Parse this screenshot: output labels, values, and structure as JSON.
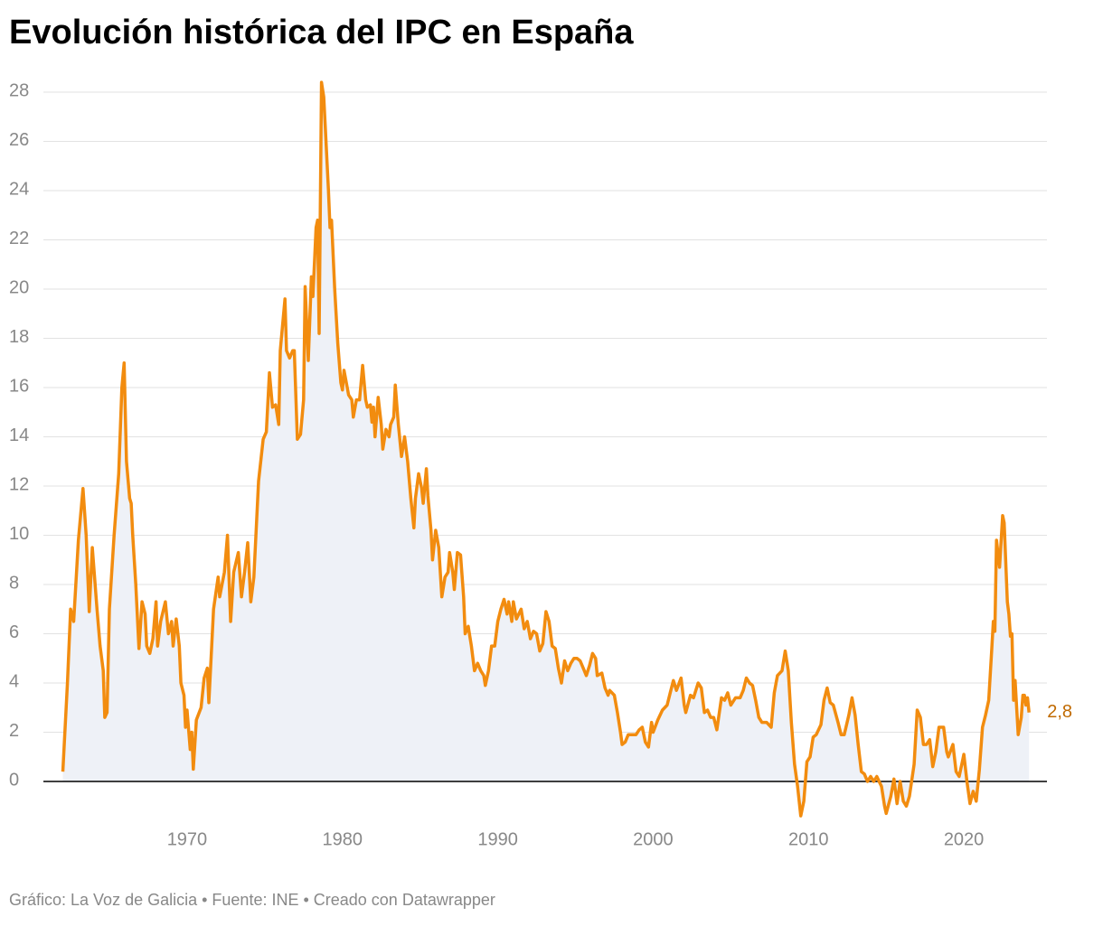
{
  "chart_data": {
    "type": "line",
    "title": "Evolución histórica del IPC en España",
    "source": "Gráfico: La Voz de Galicia • Fuente: INE • Creado con Datawrapper",
    "xlim": [
      1960.75,
      2025.35
    ],
    "ylim": [
      -1.5,
      28.5
    ],
    "xticks": [
      1970,
      1980,
      1990,
      2000,
      2010,
      2020
    ],
    "yticks": [
      0,
      2,
      4,
      6,
      8,
      10,
      12,
      14,
      16,
      18,
      20,
      22,
      24,
      26,
      28
    ],
    "grid": true,
    "area_fill": "#eef1f7",
    "annotation": {
      "text": "2,8",
      "x": 2024.2,
      "y": 2.8
    },
    "x": [
      1962.0,
      1962.3,
      1962.5,
      1962.7,
      1963.0,
      1963.3,
      1963.5,
      1963.7,
      1963.9,
      1964.2,
      1964.4,
      1964.6,
      1964.7,
      1964.85,
      1965.0,
      1965.3,
      1965.6,
      1965.8,
      1965.95,
      1966.1,
      1966.3,
      1966.4,
      1966.5,
      1966.7,
      1966.9,
      1967.1,
      1967.3,
      1967.4,
      1967.6,
      1967.8,
      1968.0,
      1968.1,
      1968.3,
      1968.6,
      1968.8,
      1969.0,
      1969.1,
      1969.3,
      1969.5,
      1969.6,
      1969.8,
      1969.9,
      1970.0,
      1970.2,
      1970.3,
      1970.4,
      1970.6,
      1970.9,
      1971.1,
      1971.3,
      1971.4,
      1971.7,
      1972.0,
      1972.1,
      1972.4,
      1972.6,
      1972.8,
      1973.0,
      1973.3,
      1973.5,
      1973.7,
      1973.9,
      1974.1,
      1974.3,
      1974.6,
      1974.9,
      1975.1,
      1975.3,
      1975.5,
      1975.7,
      1975.9,
      1976.0,
      1976.3,
      1976.4,
      1976.6,
      1976.8,
      1976.9,
      1977.1,
      1977.3,
      1977.5,
      1977.6,
      1977.8,
      1978.0,
      1978.1,
      1978.3,
      1978.4,
      1978.5,
      1978.65,
      1978.8,
      1978.9,
      1979.1,
      1979.2,
      1979.3,
      1979.5,
      1979.7,
      1979.9,
      1980.0,
      1980.1,
      1980.4,
      1980.6,
      1980.7,
      1980.9,
      1981.1,
      1981.3,
      1981.5,
      1981.6,
      1981.8,
      1981.9,
      1982.0,
      1982.1,
      1982.3,
      1982.5,
      1982.6,
      1982.8,
      1983.0,
      1983.1,
      1983.3,
      1983.4,
      1983.6,
      1983.8,
      1984.0,
      1984.2,
      1984.4,
      1984.6,
      1984.7,
      1984.9,
      1985.1,
      1985.2,
      1985.4,
      1985.5,
      1985.7,
      1985.8,
      1986.0,
      1986.2,
      1986.3,
      1986.4,
      1986.6,
      1986.8,
      1986.9,
      1987.1,
      1987.2,
      1987.4,
      1987.6,
      1987.8,
      1987.9,
      1988.1,
      1988.3,
      1988.5,
      1988.7,
      1988.9,
      1989.1,
      1989.2,
      1989.4,
      1989.6,
      1989.8,
      1990.0,
      1990.2,
      1990.4,
      1990.6,
      1990.7,
      1990.9,
      1991.0,
      1991.2,
      1991.5,
      1991.7,
      1991.9,
      1992.1,
      1992.3,
      1992.5,
      1992.7,
      1992.9,
      1993.1,
      1993.3,
      1993.5,
      1993.7,
      1993.9,
      1994.1,
      1994.3,
      1994.5,
      1994.7,
      1994.9,
      1995.1,
      1995.3,
      1995.5,
      1995.7,
      1995.9,
      1996.1,
      1996.3,
      1996.4,
      1996.7,
      1996.9,
      1997.1,
      1997.2,
      1997.5,
      1997.7,
      1997.9,
      1998.0,
      1998.2,
      1998.4,
      1998.7,
      1998.9,
      1999.1,
      1999.3,
      1999.5,
      1999.7,
      1999.9,
      2000.0,
      2000.3,
      2000.6,
      2000.9,
      2001.1,
      2001.3,
      2001.5,
      2001.8,
      2002.0,
      2002.1,
      2002.4,
      2002.6,
      2002.9,
      2003.1,
      2003.3,
      2003.5,
      2003.7,
      2003.9,
      2004.1,
      2004.4,
      2004.6,
      2004.8,
      2005.0,
      2005.3,
      2005.6,
      2005.8,
      2006.0,
      2006.2,
      2006.4,
      2006.6,
      2006.8,
      2007.0,
      2007.3,
      2007.6,
      2007.8,
      2008.0,
      2008.3,
      2008.5,
      2008.7,
      2008.9,
      2009.1,
      2009.3,
      2009.5,
      2009.7,
      2009.9,
      2010.1,
      2010.3,
      2010.5,
      2010.8,
      2011.0,
      2011.2,
      2011.4,
      2011.6,
      2011.9,
      2012.1,
      2012.3,
      2012.6,
      2012.8,
      2013.0,
      2013.2,
      2013.4,
      2013.6,
      2013.8,
      2014.0,
      2014.2,
      2014.4,
      2014.7,
      2014.9,
      2015.0,
      2015.3,
      2015.5,
      2015.7,
      2015.9,
      2016.1,
      2016.3,
      2016.5,
      2016.8,
      2017.0,
      2017.2,
      2017.4,
      2017.6,
      2017.8,
      2018.0,
      2018.2,
      2018.4,
      2018.7,
      2018.9,
      2019.0,
      2019.3,
      2019.5,
      2019.7,
      2019.9,
      2020.0,
      2020.2,
      2020.4,
      2020.6,
      2020.8,
      2021.0,
      2021.2,
      2021.4,
      2021.6,
      2021.8,
      2021.9,
      2022.0,
      2022.1,
      2022.3,
      2022.5,
      2022.6,
      2022.8,
      2022.9,
      2023.0,
      2023.1,
      2023.2,
      2023.3,
      2023.5,
      2023.7,
      2023.8,
      2023.9,
      2024.0,
      2024.1,
      2024.2
    ],
    "series": [
      {
        "name": "IPC",
        "color": "#f28c0f",
        "values": [
          0.4,
          4,
          7,
          6.5,
          9.8,
          11.9,
          10,
          6.9,
          9.5,
          7,
          5.5,
          4.5,
          2.6,
          2.8,
          7,
          10,
          12.5,
          16,
          17,
          13,
          11.5,
          11.3,
          10,
          8,
          5.4,
          7.3,
          6.8,
          5.5,
          5.2,
          5.8,
          7.3,
          5.5,
          6.5,
          7.3,
          6,
          6.5,
          5.5,
          6.6,
          5.5,
          4,
          3.5,
          2.2,
          2.9,
          1.3,
          2,
          0.5,
          2.5,
          3,
          4.2,
          4.6,
          3.2,
          7,
          8.3,
          7.5,
          8.5,
          10,
          6.5,
          8.5,
          9.3,
          7.5,
          8.5,
          9.7,
          7.3,
          8.3,
          12.2,
          13.9,
          14.2,
          16.6,
          15.2,
          15.3,
          14.5,
          17.5,
          19.6,
          17.5,
          17.2,
          17.5,
          17.5,
          13.9,
          14.1,
          15.5,
          20.1,
          17.1,
          20.5,
          19.7,
          22.5,
          22.8,
          18.2,
          28.4,
          27.8,
          26.5,
          24,
          22.5,
          22.8,
          20,
          17.8,
          16.2,
          15.9,
          16.7,
          15.7,
          15.5,
          14.8,
          15.5,
          15.5,
          16.9,
          15.5,
          15.2,
          15.3,
          14.6,
          15.2,
          14.0,
          15.6,
          14.5,
          13.5,
          14.3,
          14.0,
          14.5,
          14.8,
          16.1,
          14.5,
          13.2,
          14,
          13,
          11.5,
          10.3,
          11.5,
          12.5,
          11.9,
          11.3,
          12.7,
          11.6,
          10.2,
          9.0,
          10.2,
          9.5,
          8.5,
          7.5,
          8.3,
          8.5,
          9.3,
          8.5,
          7.8,
          9.3,
          9.2,
          7.5,
          6,
          6.3,
          5.5,
          4.5,
          4.8,
          4.5,
          4.3,
          3.9,
          4.5,
          5.5,
          5.5,
          6.5,
          7,
          7.4,
          6.8,
          7.3,
          6.5,
          7.3,
          6.6,
          7.0,
          6.2,
          6.5,
          5.8,
          6.1,
          6.0,
          5.3,
          5.6,
          6.9,
          6.5,
          5.5,
          5.4,
          4.6,
          4.0,
          4.9,
          4.5,
          4.8,
          5.0,
          5.0,
          4.9,
          4.6,
          4.3,
          4.7,
          5.2,
          5.0,
          4.3,
          4.4,
          3.8,
          3.5,
          3.7,
          3.5,
          2.8,
          2.0,
          1.5,
          1.6,
          1.9,
          1.9,
          1.9,
          2.1,
          2.2,
          1.6,
          1.4,
          2.4,
          2.0,
          2.5,
          2.9,
          3.1,
          3.6,
          4.1,
          3.7,
          4.2,
          3.1,
          2.8,
          3.5,
          3.4,
          4.0,
          3.8,
          2.8,
          2.9,
          2.6,
          2.6,
          2.1,
          3.4,
          3.3,
          3.6,
          3.1,
          3.4,
          3.4,
          3.7,
          4.2,
          4.0,
          3.9,
          3.3,
          2.6,
          2.4,
          2.4,
          2.2,
          3.6,
          4.3,
          4.5,
          5.3,
          4.5,
          2.4,
          0.7,
          -0.2,
          -1.4,
          -0.8,
          0.8,
          1.0,
          1.8,
          1.9,
          2.3,
          3.3,
          3.8,
          3.2,
          3.1,
          2.4,
          1.9,
          1.9,
          2.7,
          3.4,
          2.7,
          1.5,
          0.4,
          0.3,
          0.0,
          0.2,
          0.0,
          0.2,
          -0.2,
          -1.0,
          -1.3,
          -0.6,
          0.1,
          -0.9,
          0.0,
          -0.8,
          -1.0,
          -0.6,
          0.7,
          2.9,
          2.6,
          1.5,
          1.5,
          1.7,
          0.6,
          1.2,
          2.2,
          2.2,
          1.2,
          1.0,
          1.5,
          0.4,
          0.2,
          0.8,
          1.1,
          0.0,
          -0.9,
          -0.4,
          -0.8,
          0.5,
          2.2,
          2.7,
          3.3,
          5.4,
          6.5,
          6.1,
          9.8,
          8.7,
          10.8,
          10.5,
          7.3,
          6.8,
          5.9,
          6.0,
          3.3,
          4.1,
          1.9,
          2.6,
          3.5,
          3.5,
          3.1,
          3.4,
          2.8
        ]
      }
    ]
  }
}
